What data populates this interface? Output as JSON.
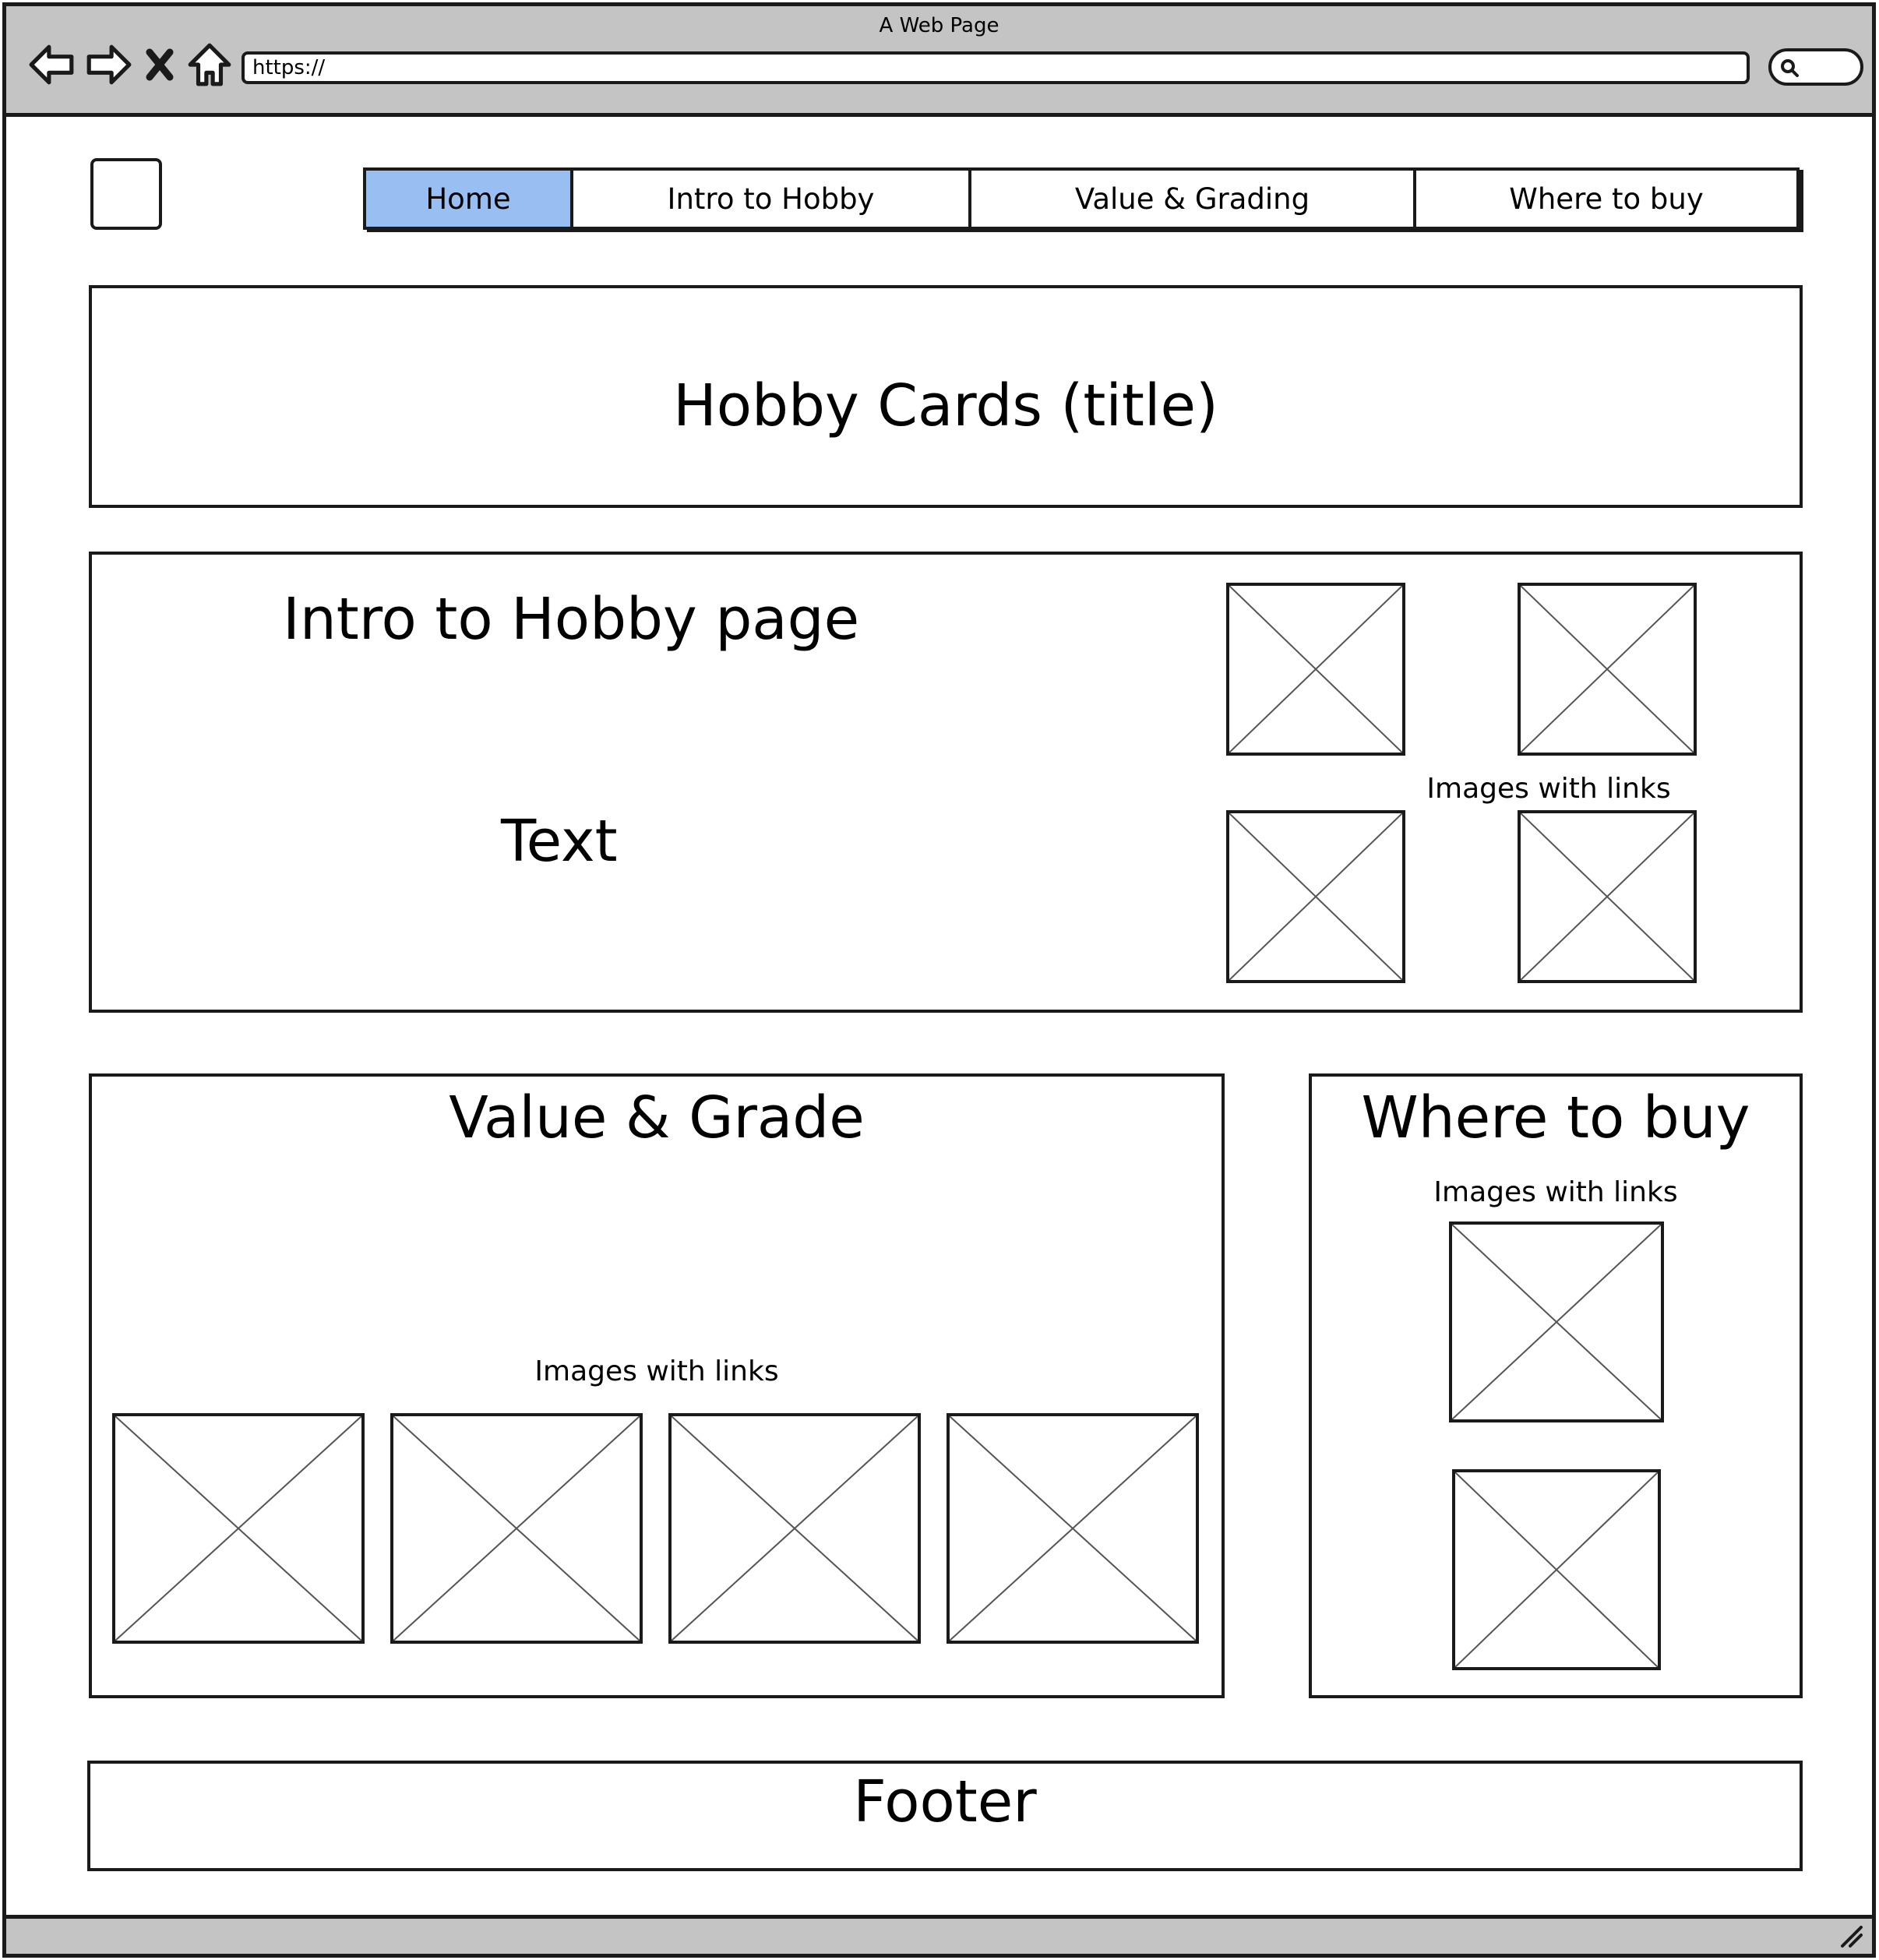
{
  "browser": {
    "window_title": "A Web Page",
    "url": "https://"
  },
  "nav": {
    "tabs": [
      {
        "label": "Home",
        "active": true
      },
      {
        "label": "Intro to Hobby",
        "active": false
      },
      {
        "label": "Value & Grading",
        "active": false
      },
      {
        "label": "Where to buy",
        "active": false
      }
    ],
    "active_color": "#99bff2"
  },
  "hero": {
    "title": "Hobby Cards (title)"
  },
  "intro": {
    "heading": "Intro to Hobby page",
    "text": "Text",
    "images_caption": "Images with links"
  },
  "value": {
    "heading": "Value & Grade",
    "images_caption": "Images with links"
  },
  "buy": {
    "heading": "Where to buy",
    "images_caption": "Images with links"
  },
  "footer": {
    "text": "Footer"
  },
  "icons": [
    "back-arrow-icon",
    "forward-arrow-icon",
    "close-icon",
    "home-icon",
    "search-icon",
    "resize-grip-icon",
    "image-placeholder-icon"
  ]
}
